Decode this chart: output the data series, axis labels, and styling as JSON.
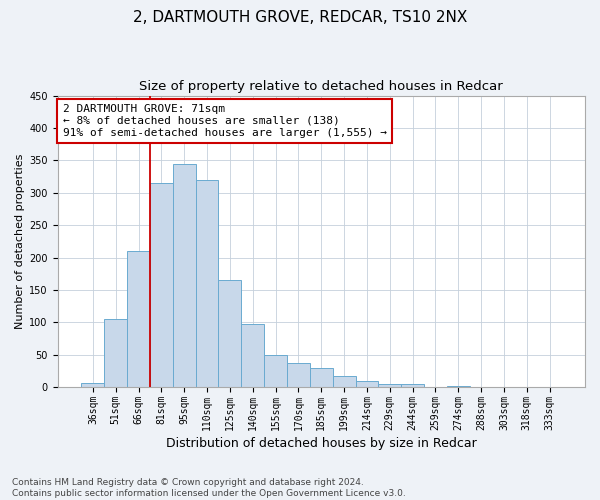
{
  "title": "2, DARTMOUTH GROVE, REDCAR, TS10 2NX",
  "subtitle": "Size of property relative to detached houses in Redcar",
  "xlabel": "Distribution of detached houses by size in Redcar",
  "ylabel": "Number of detached properties",
  "bar_labels": [
    "36sqm",
    "51sqm",
    "66sqm",
    "81sqm",
    "95sqm",
    "110sqm",
    "125sqm",
    "140sqm",
    "155sqm",
    "170sqm",
    "185sqm",
    "199sqm",
    "214sqm",
    "229sqm",
    "244sqm",
    "259sqm",
    "274sqm",
    "288sqm",
    "303sqm",
    "318sqm",
    "333sqm"
  ],
  "bar_values": [
    7,
    105,
    210,
    315,
    345,
    320,
    165,
    97,
    50,
    37,
    30,
    17,
    10,
    5,
    5,
    0,
    2,
    0,
    1,
    0,
    1
  ],
  "bar_color": "#c8d8ea",
  "bar_edge_color": "#6aaad0",
  "vline_x_idx": 2,
  "vline_color": "#cc0000",
  "annotation_text": "2 DARTMOUTH GROVE: 71sqm\n← 8% of detached houses are smaller (138)\n91% of semi-detached houses are larger (1,555) →",
  "annotation_box_color": "#ffffff",
  "annotation_box_edge_color": "#cc0000",
  "ylim": [
    0,
    450
  ],
  "yticks": [
    0,
    50,
    100,
    150,
    200,
    250,
    300,
    350,
    400,
    450
  ],
  "footer_line1": "Contains HM Land Registry data © Crown copyright and database right 2024.",
  "footer_line2": "Contains public sector information licensed under the Open Government Licence v3.0.",
  "background_color": "#eef2f7",
  "plot_background_color": "#ffffff",
  "grid_color": "#c5d0dc",
  "title_fontsize": 11,
  "subtitle_fontsize": 9.5,
  "xlabel_fontsize": 9,
  "ylabel_fontsize": 8,
  "tick_fontsize": 7,
  "annotation_fontsize": 8,
  "footer_fontsize": 6.5
}
